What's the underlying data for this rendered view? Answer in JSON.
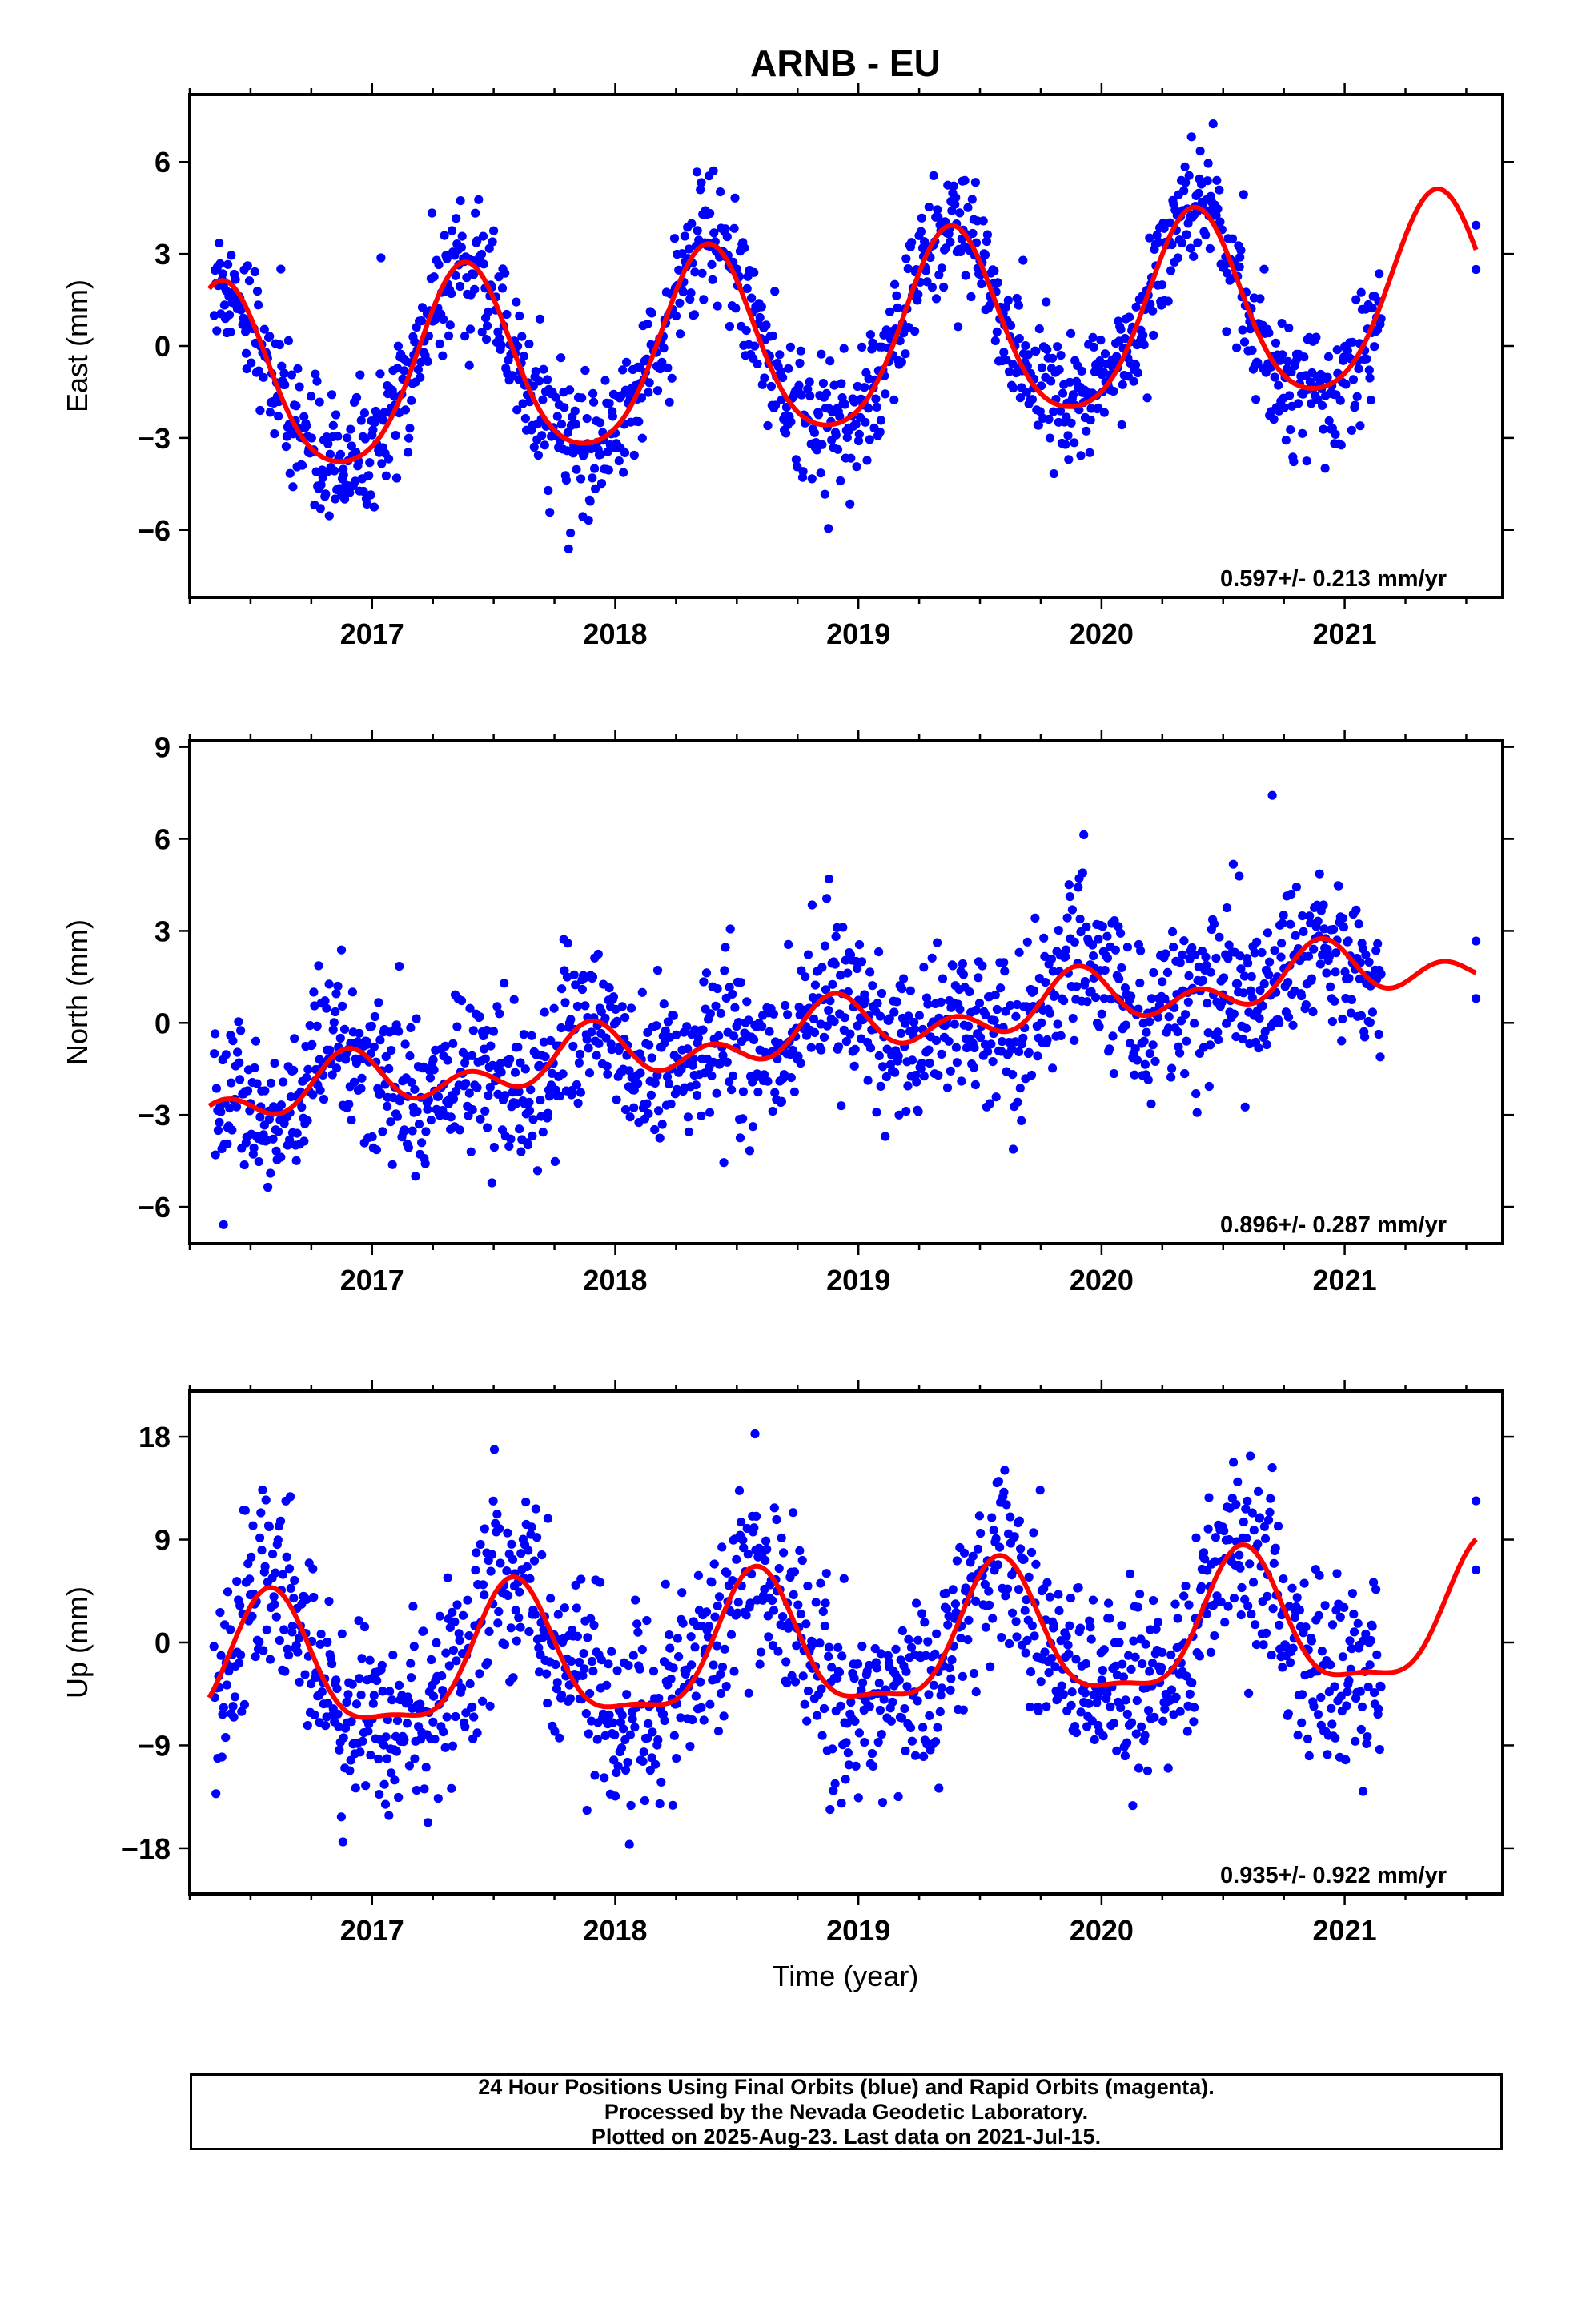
{
  "title": "ARNB - EU",
  "xlabel": "Time (year)",
  "footer": {
    "line1": "24 Hour Positions Using Final Orbits (blue) and Rapid Orbits (magenta).",
    "line2": "Processed by the Nevada Geodetic Laboratory.",
    "line3": "Plotted on 2025-Aug-23. Last data on 2021-Jul-15."
  },
  "colors": {
    "points": "#0000ff",
    "model": "#ff0000",
    "axes": "#000000"
  },
  "chart_data": [
    {
      "type": "scatter",
      "ylabel": "East (mm)",
      "xlim": [
        2016.25,
        2021.65
      ],
      "ylim": [
        -8.2,
        8.2
      ],
      "xticks": [
        2017,
        2018,
        2019,
        2020,
        2021
      ],
      "yticks": [
        -6,
        -3,
        0,
        3,
        6
      ],
      "yticklabels": [
        "−6",
        "−3",
        "0",
        "3",
        "6"
      ],
      "rate_label": "0.597+/- 0.213 mm/yr",
      "data_range": [
        2016.35,
        2021.15
      ],
      "extra_points_x": [
        2021.54,
        2021.54
      ],
      "model": {
        "offset": -0.15,
        "trend": 0.597,
        "t0": 2018.5,
        "amplitude": 3.1,
        "peak_year": 0.38,
        "semi_amplitude": 0.45,
        "noise_sd": 1.0
      },
      "series": [
        {
          "name": "Final Orbits",
          "color": "blue"
        }
      ]
    },
    {
      "type": "scatter",
      "ylabel": "North (mm)",
      "xlim": [
        2016.25,
        2021.65
      ],
      "ylim": [
        -7.2,
        9.2
      ],
      "xticks": [
        2017,
        2018,
        2019,
        2020,
        2021
      ],
      "yticks": [
        -6,
        -3,
        0,
        3,
        6,
        9
      ],
      "yticklabels": [
        "−6",
        "−3",
        "0",
        "3",
        "6",
        "9"
      ],
      "rate_label": "0.896+/- 0.287 mm/yr",
      "data_range": [
        2016.35,
        2021.15
      ],
      "extra_points_x": [
        2021.54,
        2021.54
      ],
      "model": {
        "offset": -0.6,
        "trend": 0.896,
        "t0": 2018.5,
        "amplitude": 0.6,
        "peak_year": 0.9,
        "semi_amplitude": 0.6,
        "noise_sd": 1.3
      },
      "series": [
        {
          "name": "Final Orbits",
          "color": "blue"
        }
      ]
    },
    {
      "type": "scatter",
      "ylabel": "Up (mm)",
      "xlim": [
        2016.25,
        2021.65
      ],
      "ylim": [
        -22,
        22
      ],
      "xticks": [
        2017,
        2018,
        2019,
        2020,
        2021
      ],
      "yticks": [
        -18,
        -9,
        0,
        9,
        18
      ],
      "yticklabels": [
        "−18",
        "−9",
        "0",
        "9",
        "18"
      ],
      "rate_label": "0.935+/- 0.922 mm/yr",
      "data_range": [
        2016.35,
        2021.15
      ],
      "extra_points_x": [
        2021.54,
        2021.54
      ],
      "model": {
        "offset": -1.0,
        "trend": 0.935,
        "t0": 2018.5,
        "amplitude": 5.8,
        "peak_year": 0.58,
        "semi_amplitude": 1.8,
        "noise_sd": 4.2
      },
      "series": [
        {
          "name": "Final Orbits",
          "color": "blue"
        }
      ]
    }
  ]
}
